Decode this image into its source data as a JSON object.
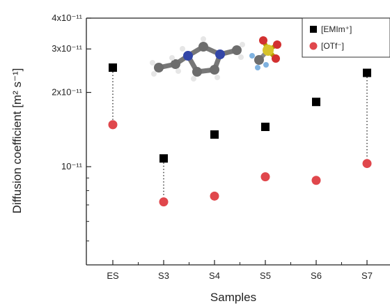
{
  "chart_data": {
    "type": "scatter",
    "xlabel": "Samples",
    "ylabel": "Diffusion coefficient [m² s⁻¹]",
    "yscale": "log",
    "ylim": [
      4e-12,
      4e-11
    ],
    "categories": [
      "ES",
      "S3",
      "S4",
      "S5",
      "S6",
      "S7"
    ],
    "yticks": [
      {
        "value": 1e-11,
        "label": "10⁻¹¹"
      },
      {
        "value": 2e-11,
        "label": "2x10⁻¹¹"
      },
      {
        "value": 3e-11,
        "label": "3x10⁻¹¹"
      },
      {
        "value": 4e-11,
        "label": "4x10⁻¹¹"
      }
    ],
    "series": [
      {
        "name": "[EMIm⁺]",
        "marker": "square",
        "color": "#000000",
        "values": [
          2.52e-11,
          1.08e-11,
          1.35e-11,
          1.45e-11,
          1.83e-11,
          2.4e-11
        ]
      },
      {
        "name": "[OTf⁻]",
        "marker": "circle",
        "color": "#e0474c",
        "values": [
          1.48e-11,
          7.2e-12,
          7.6e-12,
          9.1e-12,
          8.8e-12,
          1.03e-11
        ]
      }
    ],
    "dotted_connectors": [
      "ES",
      "S3",
      "S7"
    ],
    "legend_position": "top-right",
    "grid": false,
    "inset": "molecular structures of EMIm cation and OTf anion"
  }
}
